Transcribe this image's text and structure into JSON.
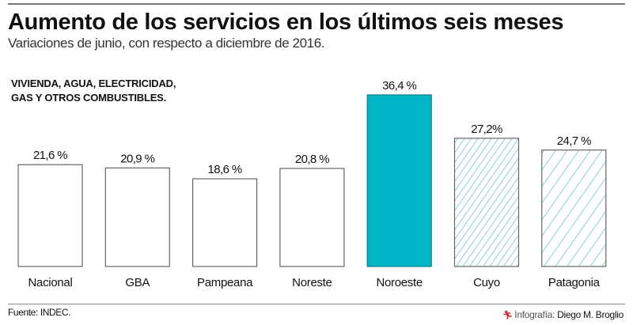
{
  "header": {
    "title": "Aumento de los servicios en los últimos seis meses",
    "subtitle": "Variaciones de junio, con respecto a diciembre de 2016.",
    "category_line1": "VIVIENDA, AGUA, ELECTRICIDAD,",
    "category_line2": "GAS Y OTROS COMBUSTIBLES."
  },
  "footer": {
    "source": "Fuente: INDEC.",
    "credit_label": "Infografía:",
    "credit_name": "Diego M. Broglio",
    "credit_icon": "runner-logo-icon"
  },
  "colors": {
    "highlight": "#00b5c8",
    "hatch": "#4bb8c0",
    "outline": "#666666"
  },
  "chart_data": {
    "type": "bar",
    "title": "Aumento de los servicios en los últimos seis meses",
    "subtitle": "Variaciones de junio, con respecto a diciembre de 2016.",
    "xlabel": "",
    "ylabel": "",
    "ylim": [
      0,
      36.4
    ],
    "grid": false,
    "categories": [
      "Nacional",
      "GBA",
      "Pampeana",
      "Noreste",
      "Noroeste",
      "Cuyo",
      "Patagonia"
    ],
    "values": [
      21.6,
      20.9,
      18.6,
      20.8,
      36.4,
      27.2,
      24.7
    ],
    "labels": [
      "21,6 %",
      "20,9 %",
      "18,6 %",
      "20,8 %",
      "36,4 %",
      "27,2%",
      "24,7 %"
    ],
    "styles": [
      "outline",
      "outline",
      "outline",
      "outline",
      "solid",
      "hatched",
      "hatched"
    ],
    "unit": "%"
  }
}
